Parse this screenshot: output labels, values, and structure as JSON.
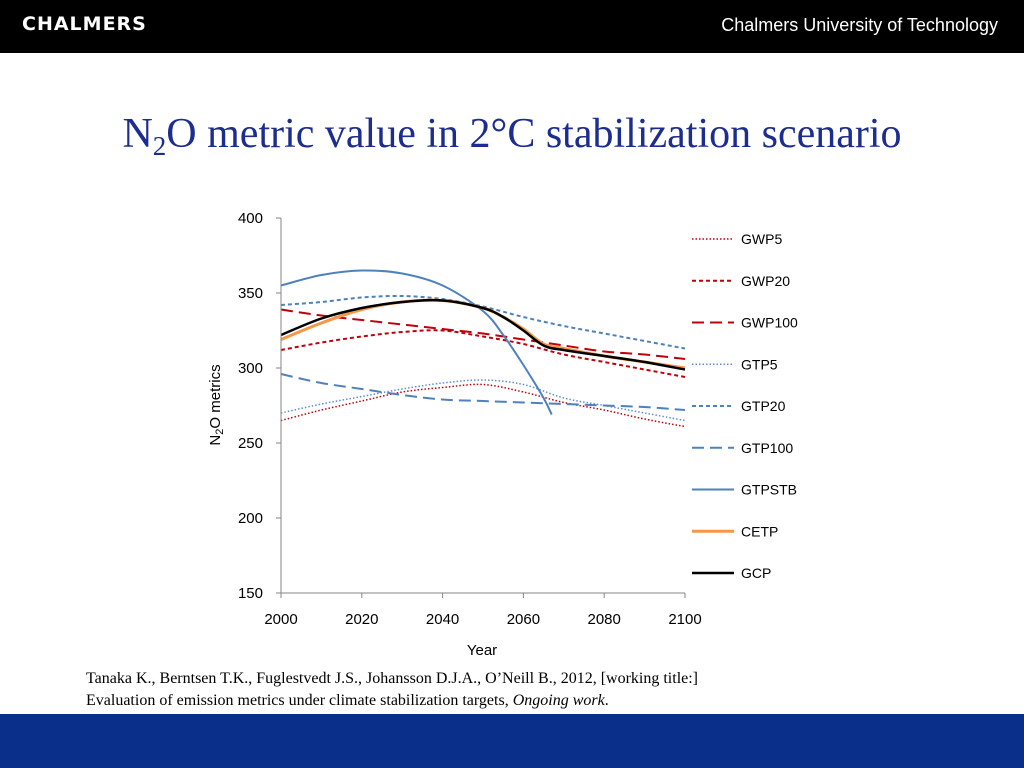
{
  "header": {
    "logo": "CHALMERS",
    "university": "Chalmers University of Technology"
  },
  "slide": {
    "title_n": "N",
    "title_sub": "2",
    "title_rest": "O metric value in 2°C stabilization scenario",
    "reference_line1": "Tanaka K., Berntsen T.K., Fuglestvedt J.S., Johansson D.J.A., O’Neill B., 2012, [working title:]",
    "reference_line2": "Evaluation of emission metrics under climate stabilization targets, ",
    "reference_italic": "Ongoing work",
    "reference_end": "."
  },
  "colors": {
    "header_bg": "#000000",
    "footer_bg": "#0a2f8a",
    "title": "#1c2d8f"
  },
  "chart_data": {
    "type": "line",
    "xlabel": "Year",
    "ylabel_n": "N",
    "ylabel_sub": "2",
    "ylabel_rest": "O metrics",
    "xlim": [
      2000,
      2100
    ],
    "ylim": [
      150,
      400
    ],
    "xticks": [
      "2000",
      "2020",
      "2040",
      "2060",
      "2080",
      "2100"
    ],
    "yticks": [
      "400",
      "350",
      "300",
      "250",
      "200",
      "150"
    ],
    "grid": false,
    "legend_position": "right",
    "series": [
      {
        "name": "GWP5",
        "color": "#c0000c",
        "dash": "1.5,2",
        "width": 1.5,
        "x": [
          2000,
          2010,
          2020,
          2030,
          2040,
          2050,
          2060,
          2070,
          2080,
          2090,
          2100
        ],
        "y": [
          265,
          272,
          278,
          284,
          287,
          289,
          284,
          277,
          272,
          266,
          261
        ]
      },
      {
        "name": "GWP20",
        "color": "#c0000c",
        "dash": "4,3",
        "width": 2,
        "x": [
          2000,
          2010,
          2020,
          2030,
          2040,
          2050,
          2060,
          2070,
          2080,
          2090,
          2100
        ],
        "y": [
          312,
          317,
          321,
          324,
          325,
          321,
          316,
          309,
          304,
          299,
          294
        ]
      },
      {
        "name": "GWP100",
        "color": "#c0000c",
        "dash": "12,6",
        "width": 2,
        "x": [
          2000,
          2010,
          2020,
          2030,
          2040,
          2050,
          2060,
          2070,
          2080,
          2090,
          2100
        ],
        "y": [
          339,
          335,
          332,
          329,
          326,
          323,
          319,
          315,
          311,
          309,
          306
        ]
      },
      {
        "name": "GTP5",
        "color": "#5b8fd1",
        "dash": "1.5,2",
        "width": 1.5,
        "x": [
          2000,
          2010,
          2020,
          2030,
          2040,
          2050,
          2060,
          2070,
          2080,
          2090,
          2100
        ],
        "y": [
          270,
          276,
          281,
          286,
          290,
          292,
          289,
          280,
          275,
          270,
          265
        ]
      },
      {
        "name": "GTP20",
        "color": "#4f81bd",
        "dash": "4,3",
        "width": 2,
        "x": [
          2000,
          2010,
          2020,
          2030,
          2040,
          2050,
          2060,
          2070,
          2080,
          2090,
          2100
        ],
        "y": [
          342,
          344,
          347,
          348,
          346,
          341,
          334,
          328,
          323,
          318,
          313
        ]
      },
      {
        "name": "GTP100",
        "color": "#4f81bd",
        "dash": "12,6",
        "width": 2,
        "x": [
          2000,
          2010,
          2020,
          2030,
          2040,
          2050,
          2060,
          2070,
          2080,
          2090,
          2100
        ],
        "y": [
          296,
          290,
          286,
          282,
          279,
          278,
          277,
          276,
          275,
          274,
          272
        ]
      },
      {
        "name": "GTPSTB",
        "color": "#4f81bd",
        "dash": "",
        "width": 2,
        "x": [
          2000,
          2010,
          2020,
          2030,
          2040,
          2050,
          2055,
          2060,
          2065,
          2067
        ],
        "y": [
          355,
          362,
          365,
          363,
          355,
          338,
          322,
          302,
          280,
          269
        ]
      },
      {
        "name": "CETP",
        "color": "#f79646",
        "dash": "",
        "width": 3,
        "x": [
          2000,
          2010,
          2020,
          2030,
          2040,
          2050,
          2055,
          2060,
          2065,
          2070,
          2080,
          2090,
          2100
        ],
        "y": [
          319,
          330,
          339,
          344,
          345,
          340,
          334,
          326,
          316,
          313,
          308,
          304,
          300
        ]
      },
      {
        "name": "GCP",
        "color": "#000000",
        "dash": "",
        "width": 2.5,
        "x": [
          2000,
          2010,
          2020,
          2030,
          2040,
          2050,
          2055,
          2060,
          2065,
          2070,
          2080,
          2090,
          2100
        ],
        "y": [
          322,
          333,
          340,
          344,
          345,
          340,
          334,
          325,
          315,
          312,
          308,
          304,
          299
        ]
      }
    ]
  }
}
